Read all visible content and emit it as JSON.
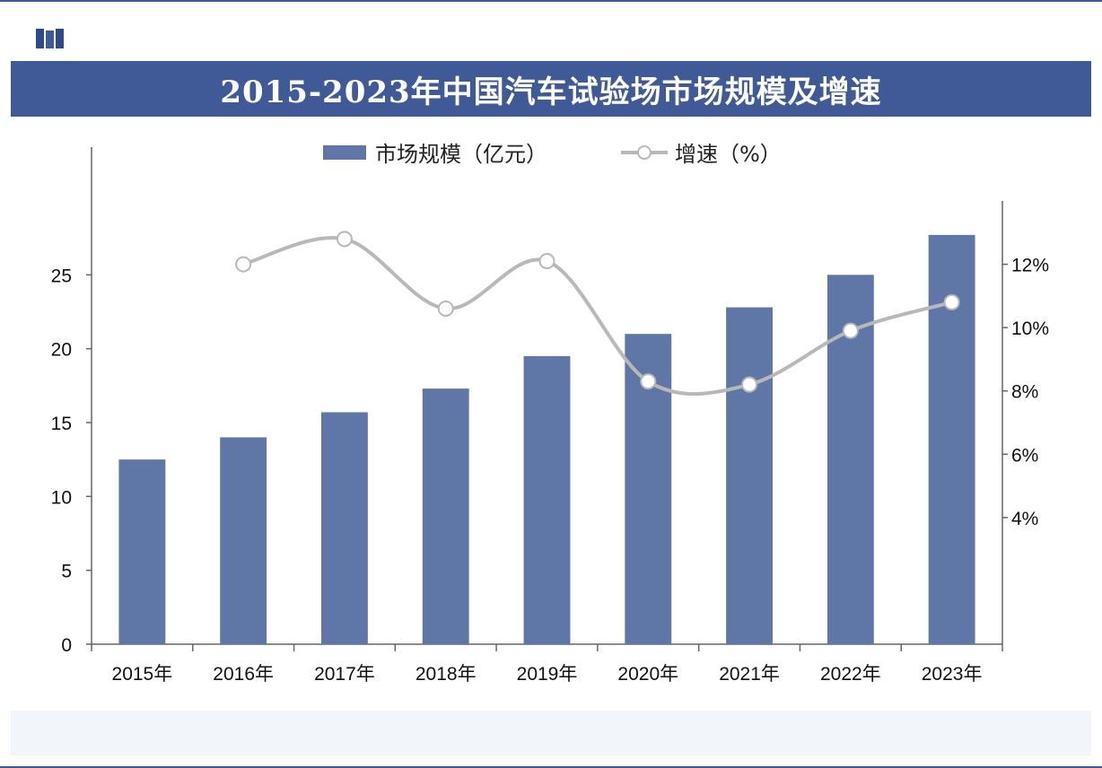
{
  "title": "2015-2023年中国汽车试验场市场规模及增速",
  "colors": {
    "title_bg": "#3f5a97",
    "bar": "#5f77a6",
    "line": "#b8b8b8",
    "axis": "#666666"
  },
  "legend": {
    "bar_label": "市场规模（亿元）",
    "line_label": "增速（%）"
  },
  "chart_data": {
    "type": "bar",
    "categories": [
      "2015年",
      "2016年",
      "2017年",
      "2018年",
      "2019年",
      "2020年",
      "2021年",
      "2022年",
      "2023年"
    ],
    "series": [
      {
        "name": "市场规模（亿元）",
        "type": "bar",
        "axis": "left",
        "values": [
          12.5,
          14.0,
          15.7,
          17.3,
          19.5,
          21.0,
          22.8,
          25.0,
          27.7
        ]
      },
      {
        "name": "增速（%）",
        "type": "line",
        "axis": "right",
        "values": [
          null,
          12.0,
          12.8,
          10.6,
          12.1,
          8.3,
          8.2,
          9.9,
          10.8
        ]
      }
    ],
    "left_axis": {
      "ylim": [
        0,
        30
      ],
      "ticks": [
        "0",
        "5",
        "10",
        "15",
        "20",
        "25"
      ]
    },
    "right_axis": {
      "ylim": [
        0,
        14
      ],
      "ticks": [
        "4%",
        "6%",
        "8%",
        "10%",
        "12%"
      ]
    }
  }
}
